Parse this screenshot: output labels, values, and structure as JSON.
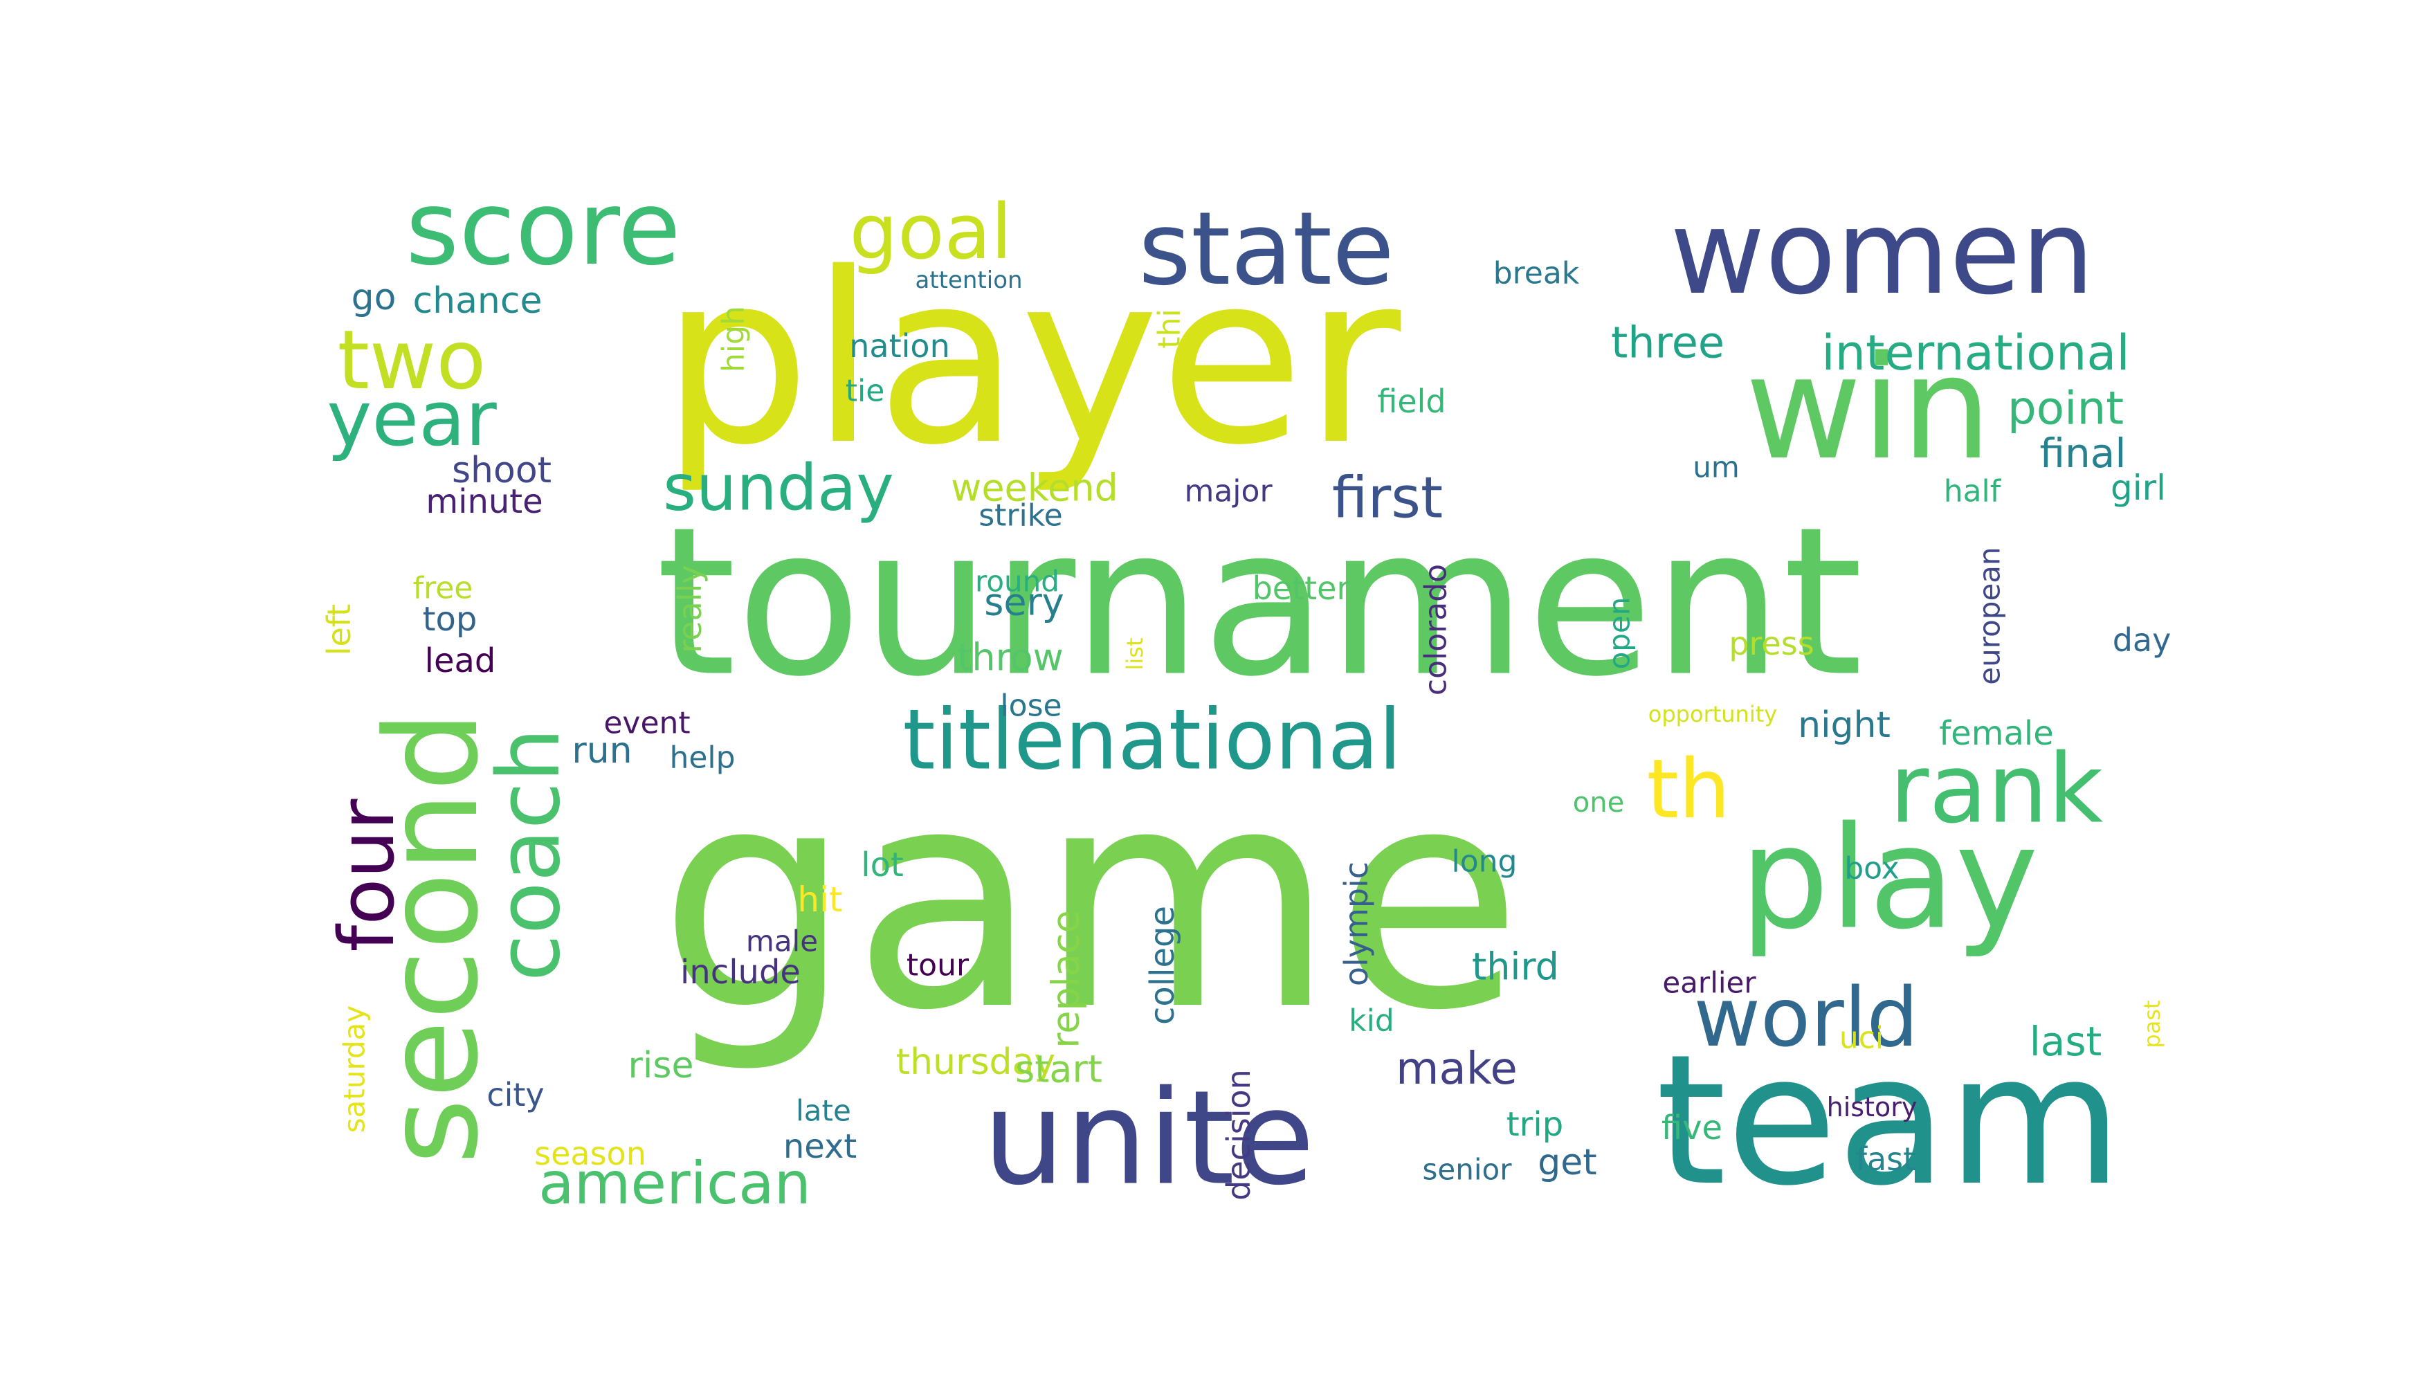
{
  "words": [
    {
      "text": "game",
      "color": "#7ad151"
    },
    {
      "text": "tournament",
      "color": "#5ec962"
    },
    {
      "text": "player",
      "color": "#d8e219"
    },
    {
      "text": "win",
      "color": "#5ec962"
    },
    {
      "text": "women",
      "color": "#3e4989"
    },
    {
      "text": "team",
      "color": "#21918c"
    },
    {
      "text": "unite",
      "color": "#3f4788"
    },
    {
      "text": "play",
      "color": "#52c569"
    },
    {
      "text": "state",
      "color": "#3b528b"
    },
    {
      "text": "score",
      "color": "#3dbc74"
    },
    {
      "text": "rank",
      "color": "#44bf70"
    },
    {
      "text": "titlenational",
      "color": "#1f978b"
    },
    {
      "text": "second",
      "color": "#6ece58"
    },
    {
      "text": "world",
      "color": "#31688e"
    },
    {
      "text": "coach",
      "color": "#4ac16d"
    },
    {
      "text": "th",
      "color": "#fde725"
    },
    {
      "text": "four",
      "color": "#440154"
    },
    {
      "text": "year",
      "color": "#2db27d"
    },
    {
      "text": "two",
      "color": "#c2df23"
    },
    {
      "text": "goal",
      "color": "#c8e020"
    },
    {
      "text": "american",
      "color": "#4ac16d"
    },
    {
      "text": "sunday",
      "color": "#29af7f"
    },
    {
      "text": "first",
      "color": "#3b528b"
    },
    {
      "text": "international",
      "color": "#25ac82"
    },
    {
      "text": "three",
      "color": "#20a386"
    },
    {
      "text": "point",
      "color": "#35b779"
    },
    {
      "text": "make",
      "color": "#424186"
    },
    {
      "text": "final",
      "color": "#26828e"
    },
    {
      "text": "weekend",
      "color": "#b5de2b"
    },
    {
      "text": "shoot",
      "color": "#404688"
    },
    {
      "text": "minute",
      "color": "#482173"
    },
    {
      "text": "chance",
      "color": "#238a8d"
    },
    {
      "text": "go",
      "color": "#2c728e"
    },
    {
      "text": "nation",
      "color": "#228c8d"
    },
    {
      "text": "tie",
      "color": "#22a884"
    },
    {
      "text": "high",
      "color": "#a0da39"
    },
    {
      "text": "thi",
      "color": "#cae11f"
    },
    {
      "text": "attention",
      "color": "#2c728e"
    },
    {
      "text": "break",
      "color": "#2a788e"
    },
    {
      "text": "field",
      "color": "#35b779"
    },
    {
      "text": "major",
      "color": "#453781"
    },
    {
      "text": "strike",
      "color": "#2c728e"
    },
    {
      "text": "um",
      "color": "#2d708e"
    },
    {
      "text": "half",
      "color": "#2fb47c"
    },
    {
      "text": "girl",
      "color": "#20a386"
    },
    {
      "text": "free",
      "color": "#b8de29"
    },
    {
      "text": "top",
      "color": "#33638d"
    },
    {
      "text": "lead",
      "color": "#440154"
    },
    {
      "text": "left",
      "color": "#d5e21a"
    },
    {
      "text": "really",
      "color": "#7ad151"
    },
    {
      "text": "round",
      "color": "#29af7f"
    },
    {
      "text": "sery",
      "color": "#277f8e"
    },
    {
      "text": "throw",
      "color": "#54c568"
    },
    {
      "text": "better",
      "color": "#52c569"
    },
    {
      "text": "colorado",
      "color": "#472d7b"
    },
    {
      "text": "open",
      "color": "#22a884"
    },
    {
      "text": "press",
      "color": "#b5de2b"
    },
    {
      "text": "list",
      "color": "#dde318"
    },
    {
      "text": "european",
      "color": "#3f4788"
    },
    {
      "text": "day",
      "color": "#31688e"
    },
    {
      "text": "lose",
      "color": "#2a768e"
    },
    {
      "text": "opportunity",
      "color": "#d2e21b"
    },
    {
      "text": "event",
      "color": "#481668"
    },
    {
      "text": "run",
      "color": "#2c728e"
    },
    {
      "text": "help",
      "color": "#2d708e"
    },
    {
      "text": "night",
      "color": "#2a788e"
    },
    {
      "text": "female",
      "color": "#31b57b"
    },
    {
      "text": "one",
      "color": "#4ec36b"
    },
    {
      "text": "lot",
      "color": "#31b57b"
    },
    {
      "text": "hit",
      "color": "#fde725"
    },
    {
      "text": "replace",
      "color": "#86d549"
    },
    {
      "text": "olympic",
      "color": "#355f8d"
    },
    {
      "text": "long",
      "color": "#23898e"
    },
    {
      "text": "box",
      "color": "#1f9e89"
    },
    {
      "text": "college",
      "color": "#2c728e"
    },
    {
      "text": "male",
      "color": "#46337e"
    },
    {
      "text": "include",
      "color": "#46327e"
    },
    {
      "text": "tour",
      "color": "#440154"
    },
    {
      "text": "third",
      "color": "#1f988b"
    },
    {
      "text": "earlier",
      "color": "#481a6c"
    },
    {
      "text": "kid",
      "color": "#29af7f"
    },
    {
      "text": "saturday",
      "color": "#e5e419"
    },
    {
      "text": "rise",
      "color": "#5ec962"
    },
    {
      "text": "thursday",
      "color": "#bddf26"
    },
    {
      "text": "start",
      "color": "#84d44b"
    },
    {
      "text": "uci",
      "color": "#dae319"
    },
    {
      "text": "last",
      "color": "#25ac82"
    },
    {
      "text": "past",
      "color": "#e7e419"
    },
    {
      "text": "city",
      "color": "#39568c"
    },
    {
      "text": "late",
      "color": "#26818e"
    },
    {
      "text": "trip",
      "color": "#22a785"
    },
    {
      "text": "five",
      "color": "#37b878"
    },
    {
      "text": "history",
      "color": "#481f70"
    },
    {
      "text": "season",
      "color": "#e2e418"
    },
    {
      "text": "next",
      "color": "#2f6c8e"
    },
    {
      "text": "decision",
      "color": "#443983"
    },
    {
      "text": "senior",
      "color": "#2e6e8e"
    },
    {
      "text": "get",
      "color": "#31688e"
    },
    {
      "text": "fast",
      "color": "#25858e"
    }
  ]
}
